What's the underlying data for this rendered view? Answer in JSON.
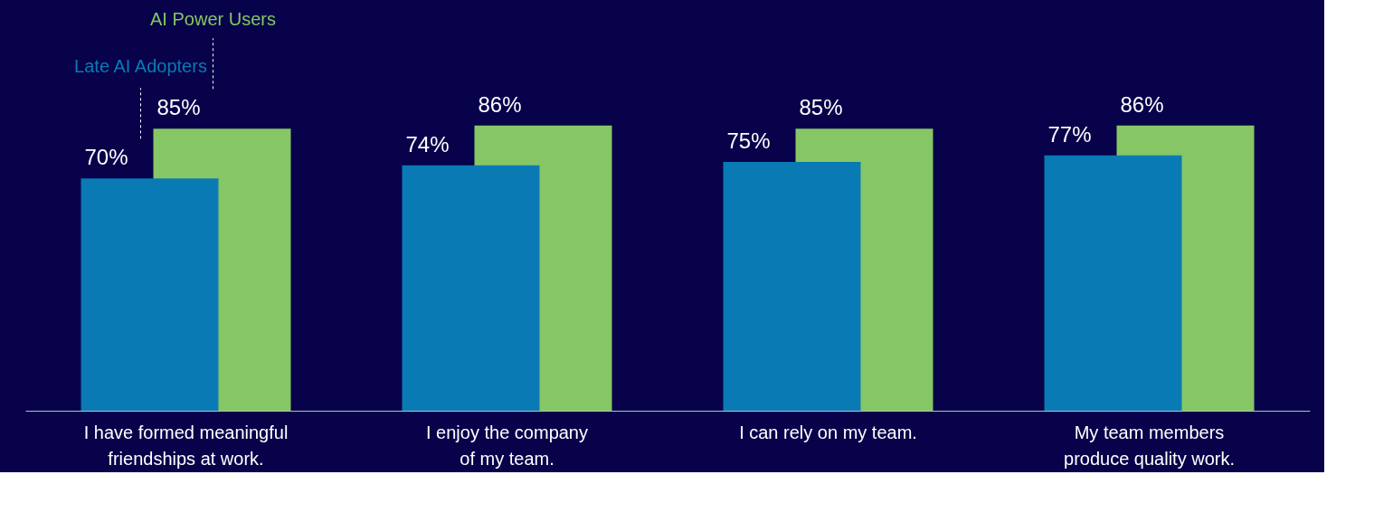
{
  "chart_data": {
    "type": "bar",
    "categories": [
      "I have formed meaningful\nfriendships at work.",
      "I enjoy the company\nof my team.",
      "I can rely on my team.",
      "My team members\nproduce quality work."
    ],
    "series": [
      {
        "name": "Late AI Adopters",
        "color": "#0a7ab5",
        "values": [
          70,
          74,
          75,
          77
        ],
        "value_labels": [
          "70%",
          "74%",
          "75%",
          "77%"
        ]
      },
      {
        "name": "AI Power Users",
        "color": "#86c664",
        "values": [
          85,
          86,
          85,
          86
        ],
        "value_labels": [
          "85%",
          "86%",
          "85%",
          "86%"
        ]
      }
    ],
    "tick_labels": "x",
    "grid": false
  }
}
